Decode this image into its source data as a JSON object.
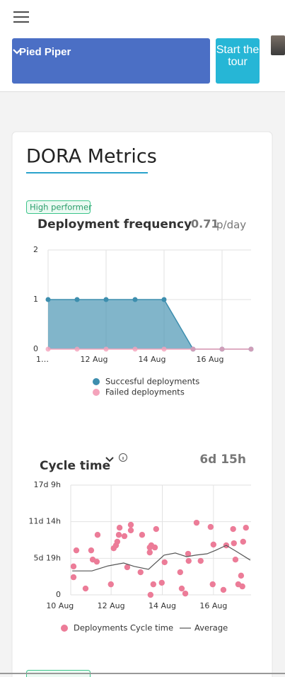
{
  "header": {
    "project": "Pied Piper",
    "tour_button": "Start the tour"
  },
  "card": {
    "title": "DORA Metrics",
    "badge": "High performer"
  },
  "chart_data": [
    {
      "type": "area",
      "title": "Deployment frequency",
      "summary_value": 0.71,
      "summary_unit": "p/day",
      "categories": [
        "1…",
        null,
        "12 Aug",
        null,
        "14 Aug",
        null,
        "16 Aug",
        null
      ],
      "series": [
        {
          "name": "Succesful deployments",
          "color": "#3d8eae",
          "values": [
            1,
            1,
            1,
            1,
            1,
            0,
            0,
            0
          ]
        },
        {
          "name": "Failed deployments",
          "color": "#f4a3bb",
          "values": [
            0,
            0,
            0,
            0,
            0,
            0,
            0,
            0
          ]
        }
      ],
      "ylim": [
        0,
        2
      ],
      "yticks": [
        0,
        1,
        2
      ],
      "grid": true
    },
    {
      "type": "scatter",
      "title": "Cycle time",
      "summary_value": "6d 15h",
      "series": [
        {
          "name": "Deployments Cycle time",
          "color": "#ec7c98",
          "x": [
            10.53,
            10.64,
            10.53,
            11.0,
            11.22,
            11.28,
            11.44,
            11.47,
            11.99,
            12.1,
            12.19,
            12.24,
            12.3,
            12.33,
            12.52,
            12.63,
            12.77,
            12.77,
            13.15,
            13.21,
            13.51,
            13.51,
            13.57,
            13.54,
            13.65,
            13.71,
            13.76,
            13.98,
            14.09,
            14.7,
            14.76,
            14.9,
            15.01,
            15.03,
            15.34,
            15.5,
            15.89,
            16.0,
            15.97,
            16.39,
            16.5,
            16.77,
            16.8,
            16.86,
            16.97,
            17.08,
            17.13,
            17.16,
            17.27
          ],
          "values": [
            108,
            169,
            67,
            24,
            169,
            134,
            126,
            228,
            40,
            177,
            188,
            202,
            228,
            255,
            223,
            105,
            266,
            245,
            86,
            228,
            180,
            161,
            188,
            0,
            40,
            180,
            250,
            46,
            124,
            86,
            24,
            5,
            156,
            129,
            274,
            129,
            258,
            191,
            40,
            19,
            188,
            250,
            196,
            134,
            40,
            73,
            32,
            202,
            255
          ]
        },
        {
          "name": "Average",
          "color": "#555555",
          "line": true,
          "x": [
            10.48,
            11.25,
            11.88,
            12.49,
            12.9,
            13.46,
            14.07,
            14.51,
            14.95,
            15.31,
            15.75,
            16.08,
            16.5,
            16.91,
            17.44
          ],
          "values": [
            91,
            91,
            110,
            121,
            108,
            97,
            151,
            159,
            145,
            151,
            156,
            169,
            188,
            164,
            132
          ]
        }
      ],
      "xlim": [
        10.42,
        17.47
      ],
      "xticks": [
        {
          "value": 10,
          "label": "10 Aug"
        },
        {
          "value": 12,
          "label": "12 Aug"
        },
        {
          "value": 14,
          "label": "14 Aug"
        },
        {
          "value": 16,
          "label": "16 Aug"
        }
      ],
      "ylim": [
        0,
        417
      ],
      "yticks": [
        0,
        {
          "value": 139,
          "label": "5d 19h"
        },
        {
          "value": 278,
          "label": "11d 14h"
        },
        {
          "value": 417,
          "label": "17d 9h"
        }
      ],
      "grid": true
    }
  ]
}
